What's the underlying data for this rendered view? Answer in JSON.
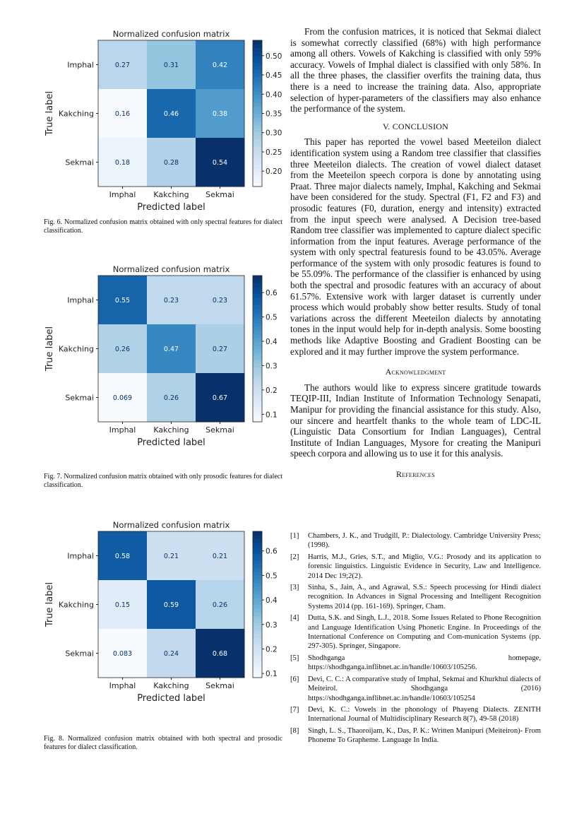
{
  "figures": [
    {
      "caption": "Fig. 6.  Normalized confusion matrix obtained with only spectral features for dialect classification.",
      "chart_data": {
        "type": "heatmap",
        "title": "Normalized confusion matrix",
        "xlabel": "Predicted label",
        "ylabel": "True label",
        "x_categories": [
          "Imphal",
          "Kakching",
          "Sekmai"
        ],
        "y_categories": [
          "Imphal",
          "Kakching",
          "Sekmai"
        ],
        "values": [
          [
            0.27,
            0.31,
            0.42
          ],
          [
            0.16,
            0.46,
            0.38
          ],
          [
            0.18,
            0.28,
            0.54
          ]
        ],
        "labels": [
          [
            "0.27",
            "0.31",
            "0.42"
          ],
          [
            "0.16",
            "0.46",
            "0.38"
          ],
          [
            "0.18",
            "0.28",
            "0.54"
          ]
        ],
        "colormap": "Blues",
        "colorbar_range": [
          0.16,
          0.54
        ],
        "colorbar_ticks": [
          "0.20",
          "0.25",
          "0.30",
          "0.35",
          "0.40",
          "0.45",
          "0.50"
        ]
      }
    },
    {
      "caption": "Fig. 7.  Normalized confusion matrix obtained with only prosodic features for dialect classification.",
      "chart_data": {
        "type": "heatmap",
        "title": "Normalized confusion matrix",
        "xlabel": "Predicted label",
        "ylabel": "True label",
        "x_categories": [
          "Imphal",
          "Kakching",
          "Sekmai"
        ],
        "y_categories": [
          "Imphal",
          "Kakching",
          "Sekmai"
        ],
        "values": [
          [
            0.55,
            0.23,
            0.23
          ],
          [
            0.26,
            0.47,
            0.27
          ],
          [
            0.069,
            0.26,
            0.67
          ]
        ],
        "labels": [
          [
            "0.55",
            "0.23",
            "0.23"
          ],
          [
            "0.26",
            "0.47",
            "0.27"
          ],
          [
            "0.069",
            "0.26",
            "0.67"
          ]
        ],
        "colormap": "Blues",
        "colorbar_range": [
          0.069,
          0.67
        ],
        "colorbar_ticks": [
          "0.1",
          "0.2",
          "0.3",
          "0.4",
          "0.5",
          "0.6"
        ]
      }
    },
    {
      "caption": "Fig. 8.  Normalized confusion matrix obtained with both spectral and prosodic features for dialect classification.",
      "chart_data": {
        "type": "heatmap",
        "title": "Normalized confusion matrix",
        "xlabel": "Predicted label",
        "ylabel": "True label",
        "x_categories": [
          "Imphal",
          "Kakching",
          "Sekmai"
        ],
        "y_categories": [
          "Imphal",
          "Kakching",
          "Sekmai"
        ],
        "values": [
          [
            0.58,
            0.21,
            0.21
          ],
          [
            0.15,
            0.59,
            0.26
          ],
          [
            0.083,
            0.24,
            0.68
          ]
        ],
        "labels": [
          [
            "0.58",
            "0.21",
            "0.21"
          ],
          [
            "0.15",
            "0.59",
            "0.26"
          ],
          [
            "0.083",
            "0.24",
            "0.68"
          ]
        ],
        "colormap": "Blues",
        "colorbar_range": [
          0.083,
          0.68
        ],
        "colorbar_ticks": [
          "0.1",
          "0.2",
          "0.3",
          "0.4",
          "0.5",
          "0.6"
        ]
      }
    }
  ],
  "text": {
    "p1": "From the confusion matrices, it is noticed that Sekmai dialect is somewhat correctly classified (68%) with high performance among all others. Vowels of Kakching is classified with only 59% accuracy. Vowels of Imphal dialect is classified with only 58%. In all the three phases, the classifier overfits the training data, thus there is a need to increase the training data. Also, appropriate selection of hyper-parameters of the classifiers may also enhance the performance of the system.",
    "conclusion_heading": "V. CONCLUSION",
    "p2": "This paper has reported the vowel based Meeteilon dialect identification system using a Random tree classifier that classifies three Meeteilon dialects. The creation of vowel dialect dataset from the Meeteilon speech corpora is done by annotating using Praat. Three major dialects namely, Imphal, Kakching and Sekmai have been considered for the study. Spectral (F1, F2 and F3) and prosodic features (F0, duration, energy and intensity) extracted from the input speech were analysed. A Decision tree-based Random tree classifier was implemented to capture dialect specific information from the input features. Average performance of the system with only spectral featuresis found to be 43.05%. Average performance of the system with only prosodic features is found to be 55.09%. The performance of the classifier is enhanced by using both the spectral and prosodic features with an accuracy of about 61.57%. Extensive work with larger dataset is currently under process which would probably show better results. Study of tonal variations across the different Meeteilon dialects by annotating tones in the input would help for in-depth analysis. Some boosting methods like Adaptive Boosting and Gradient Boosting can be explored and it may further improve the system performance.",
    "ack_heading": "Acknowledgment",
    "p3": "The authors would like to express sincere gratitude towards TEQIP-III, Indian Institute of Information Technology Senapati, Manipur for providing the financial assistance for this study. Also, our sincere and heartfelt thanks to the whole team of LDC-IL (Linguistic Data Consortium for Indian Languages), Central Institute of Indian Languages, Mysore for creating the Manipuri speech corpora and allowing us to use it for this analysis.",
    "ref_heading": "References"
  },
  "references": [
    {
      "num": "[1]",
      "text": "Chambers, J. K., and Trudgill, P.: Dialectology. Cambridge University Press; (1998)."
    },
    {
      "num": "[2]",
      "text": "Harris, M.J., Gries, S.T., and Miglio, V.G.: Prosody and its application to forensic linguistics. Linguistic Evidence in Security, Law and Intelligence. 2014 Dec 19;2(2)."
    },
    {
      "num": "[3]",
      "text": "Sinha, S., Jain, A., and Agrawal, S.S.: Speech processing for Hindi dialect recognition. In Advances in Signal Processing and Intelligent Recognition Systems 2014 (pp. 161-169). Springer, Cham."
    },
    {
      "num": "[4]",
      "text": "Dutta, S.K. and Singh, L.J., 2018. Some Issues Related to Phone Recognition and Language Identification Using Phonetic Engine. In Proceedings of the International Conference on Computing and Com-munication Systems (pp. 297-305). Springer, Singapore."
    },
    {
      "num": "[5]",
      "text": "Shodhganga homepage, https://shodhganga.inflibnet.ac.in/handle/10603/105256."
    },
    {
      "num": "[6]",
      "text": "Devi, C. C.: A comparative study of Imphal, Sekmai and Khurkhul dialects of Meiteirol. Shodhganga (2016) https://shodhganga.inflibnet.ac.in/handle/10603/105254"
    },
    {
      "num": "[7]",
      "text": "Devi, K. C.: Vowels in the phonology of Phayeng Dialects. ZENITH International Journal of Multidisciplinary Research 8(7), 49-58 (2018)"
    },
    {
      "num": "[8]",
      "text": "Singh, L. S., Thaoroijam, K., Das, P. K.: Written Manipuri (Meiteiron)- From Phoneme To Grapheme. Language In India."
    }
  ]
}
